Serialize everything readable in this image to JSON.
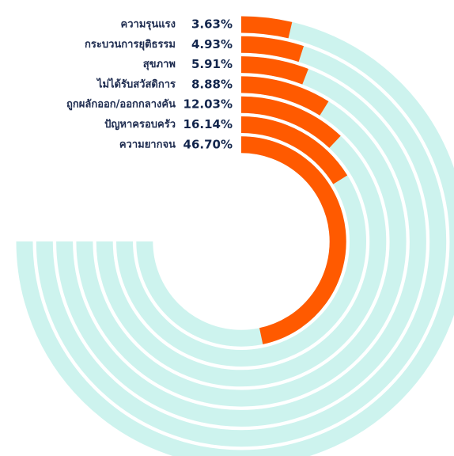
{
  "chart_data": {
    "type": "radial_bar",
    "categories": [
      "ความรุนแรง",
      "กระบวนการยุติธรรม",
      "สุขภาพ",
      "ไม่ได้รับสวัสดิการ",
      "ถูกผลักออก/ออกกลางคัน",
      "ปัญหาครอบครัว",
      "ความยากจน"
    ],
    "values": [
      3.63,
      4.93,
      5.91,
      8.88,
      12.03,
      16.14,
      46.7
    ],
    "value_labels": [
      "3.63%",
      "4.93%",
      "5.91%",
      "8.88%",
      "12.03%",
      "16.14%",
      "46.70%"
    ],
    "ylim": [
      0,
      100
    ],
    "color": "#ff5a00",
    "track_color": "#cdf3ee"
  }
}
